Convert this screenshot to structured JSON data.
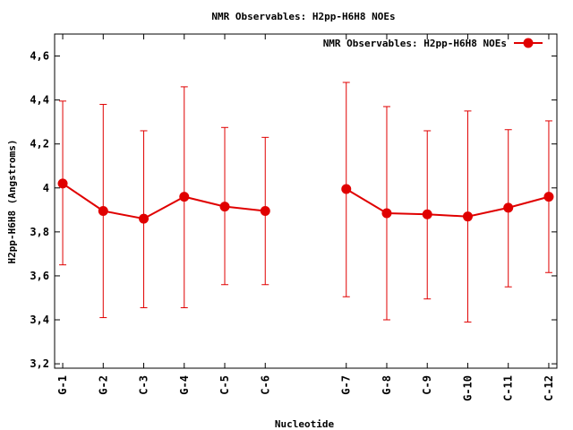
{
  "chart_data": {
    "type": "line",
    "title": "NMR Observables: H2pp-H6H8 NOEs",
    "xlabel": "Nucleotide",
    "ylabel": "H2pp-H6H8 (Angstroms)",
    "ylim": [
      3.18,
      4.7
    ],
    "yticks": [
      3.2,
      3.4,
      3.6,
      3.8,
      4,
      4.2,
      4.4,
      4.6
    ],
    "ytick_labels": [
      "3,2",
      "3,4",
      "3,6",
      "3,8",
      "4",
      "4,2",
      "4,4",
      "4,6"
    ],
    "xlim": [
      0.8,
      13.2
    ],
    "x": [
      1,
      2,
      3,
      4,
      5,
      6,
      8,
      9,
      10,
      11,
      12,
      13
    ],
    "categories": [
      "G-1",
      "G-2",
      "C-3",
      "G-4",
      "C-5",
      "C-6",
      "G-7",
      "G-8",
      "C-9",
      "G-10",
      "C-11",
      "C-12"
    ],
    "segments": [
      [
        0,
        5
      ],
      [
        6,
        11
      ]
    ],
    "series": [
      {
        "name": "NMR Observables: H2pp-H6H8 NOEs",
        "color": "#e00000",
        "values": [
          4.02,
          3.895,
          3.86,
          3.96,
          3.915,
          3.895,
          3.995,
          3.885,
          3.88,
          3.87,
          3.91,
          3.96
        ],
        "err_low": [
          3.65,
          3.41,
          3.455,
          3.455,
          3.56,
          3.56,
          3.505,
          3.4,
          3.495,
          3.39,
          3.55,
          3.615
        ],
        "err_high": [
          4.395,
          4.38,
          4.26,
          4.46,
          4.275,
          4.23,
          4.48,
          4.37,
          4.26,
          4.35,
          4.265,
          4.305
        ]
      }
    ],
    "grid": false,
    "legend": "top-right"
  }
}
